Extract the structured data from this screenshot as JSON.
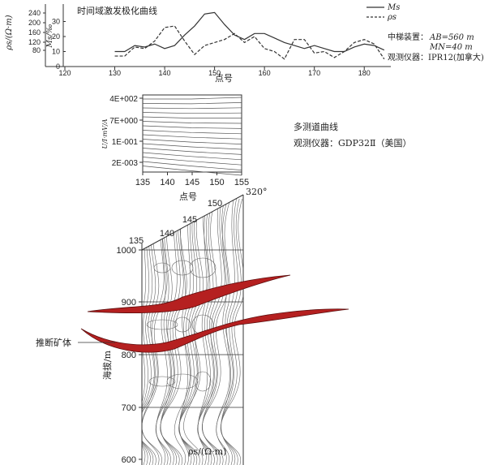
{
  "top_chart": {
    "title": "时间域激发极化曲线",
    "ylabel_left": "ρs/(Ω·m)",
    "ylabel_right": "Ms/‰",
    "left_ticks": [
      "240",
      "200",
      "160",
      "120",
      "80"
    ],
    "right_ticks": [
      "30",
      "20",
      "10",
      "0"
    ],
    "xlabel": "点号",
    "x_ticks": [
      "120",
      "130",
      "140",
      "150",
      "160",
      "170",
      "180"
    ],
    "legend": [
      {
        "label": "Ms",
        "style": "solid"
      },
      {
        "label": "ρs",
        "style": "dashed"
      }
    ],
    "device_label": "中梯装置：",
    "ab_label": "AB=560 m",
    "mn_label": "MN=40 m",
    "instrument": "观测仪器：IPR12(加拿大)"
  },
  "chart_data": [
    {
      "type": "line",
      "title": "时间域激发极化曲线",
      "xlabel": "点号",
      "xlim": [
        120,
        185
      ],
      "series": [
        {
          "name": "Ms",
          "x": [
            130,
            132,
            134,
            136,
            138,
            140,
            142,
            144,
            146,
            148,
            150,
            152,
            154,
            156,
            158,
            160,
            162,
            164,
            166,
            168,
            170,
            172,
            174,
            176,
            178,
            180,
            182,
            184
          ],
          "values": [
            10,
            10,
            14,
            13,
            15,
            12,
            14,
            21,
            27,
            35,
            36,
            28,
            21,
            18,
            22,
            22,
            19,
            16,
            14,
            12,
            14,
            12,
            10,
            10,
            13,
            15,
            14,
            11
          ]
        },
        {
          "name": "ρs",
          "x": [
            130,
            132,
            134,
            136,
            138,
            140,
            142,
            144,
            146,
            148,
            150,
            152,
            154,
            156,
            158,
            160,
            162,
            164,
            166,
            168,
            170,
            172,
            174,
            176,
            178,
            180,
            182,
            184
          ],
          "values": [
            7,
            7,
            13,
            12,
            17,
            26,
            27,
            17,
            8,
            14,
            16,
            18,
            22,
            16,
            20,
            12,
            10,
            5,
            18,
            18,
            9,
            10,
            6,
            10,
            16,
            18,
            15,
            5
          ]
        }
      ],
      "y_left_ticks": [
        80,
        120,
        160,
        200,
        240
      ],
      "y_right_ticks": [
        0,
        10,
        20,
        30
      ]
    },
    {
      "type": "line",
      "title": "多测道曲线",
      "xlabel": "点号",
      "xlim": [
        135,
        155
      ],
      "y_ticks": [
        "4E+002",
        "7E+000",
        "1E-001",
        "2E-003"
      ]
    }
  ],
  "middle_chart": {
    "y_ticks": [
      "4E+002",
      "7E+000",
      "1E-001",
      "2E-003"
    ],
    "x_ticks": [
      "135",
      "140",
      "145",
      "150",
      "155"
    ],
    "xlabel": "点号",
    "title": "多测道曲线",
    "instrument": "观测仪器：GDP32Ⅱ（美国）"
  },
  "section": {
    "elevation_ticks": [
      "1000",
      "900",
      "800",
      "700",
      "600"
    ],
    "ylabel": "海拔/m",
    "point_labels": [
      "135",
      "140",
      "145",
      "150"
    ],
    "azimuth": "320°",
    "ore_label": "推断矿体",
    "unit_label": "ρs/(Ω·m)",
    "ore_color": "#b52020"
  }
}
